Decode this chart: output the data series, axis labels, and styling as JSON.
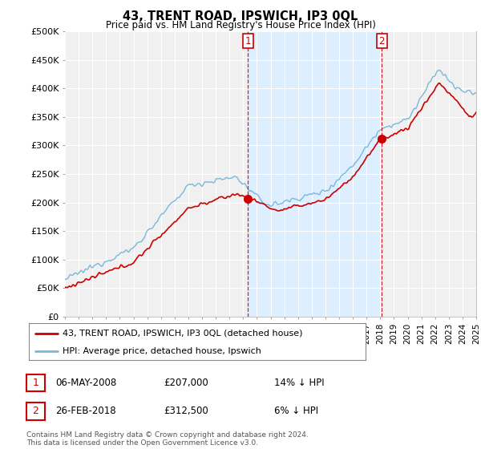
{
  "title": "43, TRENT ROAD, IPSWICH, IP3 0QL",
  "subtitle": "Price paid vs. HM Land Registry's House Price Index (HPI)",
  "legend_line1": "43, TRENT ROAD, IPSWICH, IP3 0QL (detached house)",
  "legend_line2": "HPI: Average price, detached house, Ipswich",
  "sale1_date": "06-MAY-2008",
  "sale1_price": "£207,000",
  "sale1_hpi": "14% ↓ HPI",
  "sale2_date": "26-FEB-2018",
  "sale2_price": "£312,500",
  "sale2_hpi": "6% ↓ HPI",
  "footer": "Contains HM Land Registry data © Crown copyright and database right 2024.\nThis data is licensed under the Open Government Licence v3.0.",
  "hpi_color": "#7ab8d9",
  "price_color": "#cc0000",
  "marker_color": "#cc0000",
  "sale1_year": 2008.35,
  "sale2_year": 2018.12,
  "sale1_price_val": 207000,
  "sale2_price_val": 312500,
  "ylim_min": 0,
  "ylim_max": 500000,
  "ytick_step": 50000,
  "xmin": 1995,
  "xmax": 2025,
  "background_color": "#ffffff",
  "plot_bg_color": "#f0f0f0",
  "shade_color": "#ddeeff"
}
